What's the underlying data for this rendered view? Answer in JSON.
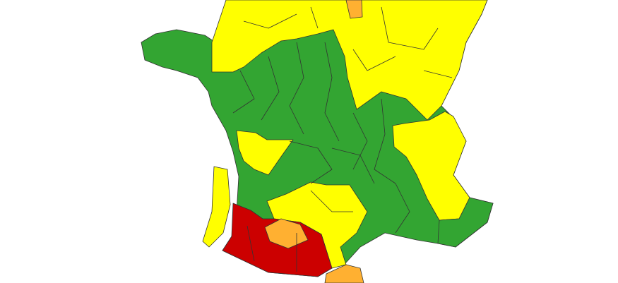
{
  "map": {
    "palette": {
      "green": "#33a532",
      "yellow": "#ffff00",
      "orange": "#ffb031",
      "red": "#cc0000"
    },
    "regions": [
      {
        "id": "france-base",
        "level": "green"
      },
      {
        "id": "north",
        "level": "yellow"
      },
      {
        "id": "north-small",
        "level": "orange"
      },
      {
        "id": "east-alps",
        "level": "yellow"
      },
      {
        "id": "southeast",
        "level": "green"
      },
      {
        "id": "charente",
        "level": "yellow"
      },
      {
        "id": "atlantic-strip",
        "level": "yellow"
      },
      {
        "id": "southwest",
        "level": "yellow"
      },
      {
        "id": "pyrenees-west",
        "level": "red"
      },
      {
        "id": "gers",
        "level": "orange"
      },
      {
        "id": "pyrenees-east",
        "level": "orange"
      }
    ]
  }
}
